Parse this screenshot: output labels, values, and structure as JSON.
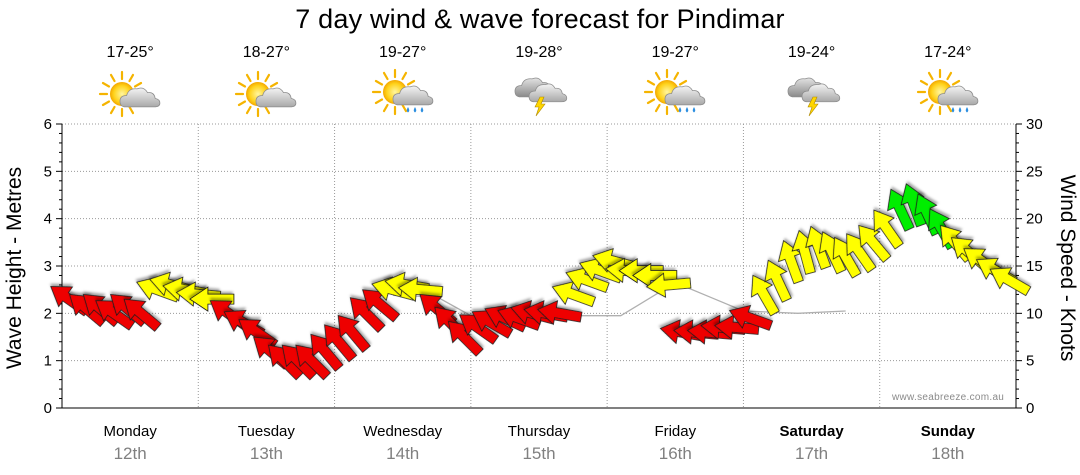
{
  "title": "7 day wind & wave forecast for Pindimar",
  "days": [
    {
      "name": "Monday",
      "date": "12th",
      "temp": "17-25°",
      "weather": "partly-cloudy-icon",
      "bold": false
    },
    {
      "name": "Tuesday",
      "date": "13th",
      "temp": "18-27°",
      "weather": "partly-cloudy-icon",
      "bold": false
    },
    {
      "name": "Wednesday",
      "date": "14th",
      "temp": "19-27°",
      "weather": "sun-shower-icon",
      "bold": false
    },
    {
      "name": "Thursday",
      "date": "15th",
      "temp": "19-28°",
      "weather": "storm-icon",
      "bold": false
    },
    {
      "name": "Friday",
      "date": "16th",
      "temp": "19-27°",
      "weather": "sun-shower-icon",
      "bold": false
    },
    {
      "name": "Saturday",
      "date": "17th",
      "temp": "19-24°",
      "weather": "storm-icon",
      "bold": true
    },
    {
      "name": "Sunday",
      "date": "18th",
      "temp": "17-24°",
      "weather": "sun-shower-icon",
      "bold": true
    }
  ],
  "credit": "www.seabreeze.com.au",
  "colors": {
    "calm": "#ffff00",
    "moderate": "#00ee00",
    "strong": "#ee0000",
    "wave_line": "#b0b0b0",
    "grid": "#9a9a9a"
  },
  "chart_data": {
    "type": "line",
    "title": "7 day wind & wave forecast for Pindimar",
    "y_left_label": "Wave Height - Metres",
    "y_left_range": [
      0,
      6
    ],
    "y_left_ticks": [
      "0",
      "1",
      "2",
      "3",
      "4",
      "5",
      "6"
    ],
    "y_right_label": "Wind Speed - Knots",
    "y_right_range": [
      0,
      30
    ],
    "y_right_ticks": [
      "0",
      "5",
      "10",
      "15",
      "20",
      "25",
      "30"
    ],
    "x_unit": "days from Monday 12th 00:00",
    "x_range": [
      0,
      7
    ],
    "grid": true,
    "wave_height_series": {
      "name": "Wave Height",
      "points": [
        [
          2.43,
          2.38
        ],
        [
          2.75,
          2.35
        ],
        [
          3.0,
          1.95
        ],
        [
          3.4,
          2.0
        ],
        [
          3.75,
          1.95
        ],
        [
          4.1,
          1.95
        ],
        [
          4.5,
          2.65
        ],
        [
          4.75,
          2.35
        ],
        [
          5.0,
          2.05
        ],
        [
          5.4,
          2.0
        ],
        [
          5.75,
          2.05
        ]
      ]
    },
    "wind_series": {
      "name": "Wind Speed",
      "unit": "knots",
      "direction": "arrow points toward wind heading (deg clockwise from east)",
      "points": [
        {
          "x": 0.05,
          "kts": 11.5,
          "dir": 215,
          "color": "strong"
        },
        {
          "x": 0.18,
          "kts": 10.5,
          "dir": 220,
          "color": "strong"
        },
        {
          "x": 0.28,
          "kts": 10.5,
          "dir": 220,
          "color": "strong"
        },
        {
          "x": 0.38,
          "kts": 10.0,
          "dir": 215,
          "color": "strong"
        },
        {
          "x": 0.48,
          "kts": 10.5,
          "dir": 220,
          "color": "strong"
        },
        {
          "x": 0.58,
          "kts": 10.0,
          "dir": 220,
          "color": "strong"
        },
        {
          "x": 0.7,
          "kts": 12.5,
          "dir": 200,
          "color": "calm"
        },
        {
          "x": 0.8,
          "kts": 13.0,
          "dir": 195,
          "color": "calm"
        },
        {
          "x": 0.9,
          "kts": 12.5,
          "dir": 190,
          "color": "calm"
        },
        {
          "x": 1.0,
          "kts": 12.0,
          "dir": 185,
          "color": "calm"
        },
        {
          "x": 1.1,
          "kts": 11.5,
          "dir": 180,
          "color": "calm"
        },
        {
          "x": 1.22,
          "kts": 10.0,
          "dir": 215,
          "color": "strong"
        },
        {
          "x": 1.33,
          "kts": 9.0,
          "dir": 210,
          "color": "strong"
        },
        {
          "x": 1.43,
          "kts": 8.0,
          "dir": 215,
          "color": "strong"
        },
        {
          "x": 1.53,
          "kts": 6.0,
          "dir": 220,
          "color": "strong"
        },
        {
          "x": 1.63,
          "kts": 5.0,
          "dir": 225,
          "color": "strong"
        },
        {
          "x": 1.73,
          "kts": 5.0,
          "dir": 225,
          "color": "strong"
        },
        {
          "x": 1.83,
          "kts": 5.0,
          "dir": 225,
          "color": "strong"
        },
        {
          "x": 1.93,
          "kts": 6.0,
          "dir": 230,
          "color": "strong"
        },
        {
          "x": 2.03,
          "kts": 7.0,
          "dir": 230,
          "color": "strong"
        },
        {
          "x": 2.13,
          "kts": 8.0,
          "dir": 230,
          "color": "strong"
        },
        {
          "x": 2.23,
          "kts": 10.0,
          "dir": 225,
          "color": "strong"
        },
        {
          "x": 2.33,
          "kts": 11.0,
          "dir": 220,
          "color": "strong"
        },
        {
          "x": 2.43,
          "kts": 12.5,
          "dir": 195,
          "color": "calm"
        },
        {
          "x": 2.53,
          "kts": 13.0,
          "dir": 190,
          "color": "calm"
        },
        {
          "x": 2.63,
          "kts": 12.5,
          "dir": 185,
          "color": "calm"
        },
        {
          "x": 2.75,
          "kts": 10.5,
          "dir": 220,
          "color": "strong"
        },
        {
          "x": 2.85,
          "kts": 9.0,
          "dir": 225,
          "color": "strong"
        },
        {
          "x": 2.95,
          "kts": 7.5,
          "dir": 225,
          "color": "strong"
        },
        {
          "x": 3.05,
          "kts": 8.5,
          "dir": 215,
          "color": "strong"
        },
        {
          "x": 3.15,
          "kts": 9.0,
          "dir": 210,
          "color": "strong"
        },
        {
          "x": 3.25,
          "kts": 9.5,
          "dir": 205,
          "color": "strong"
        },
        {
          "x": 3.35,
          "kts": 9.5,
          "dir": 200,
          "color": "strong"
        },
        {
          "x": 3.45,
          "kts": 10.0,
          "dir": 195,
          "color": "strong"
        },
        {
          "x": 3.55,
          "kts": 10.0,
          "dir": 190,
          "color": "strong"
        },
        {
          "x": 3.65,
          "kts": 10.0,
          "dir": 190,
          "color": "strong"
        },
        {
          "x": 3.75,
          "kts": 12.0,
          "dir": 200,
          "color": "calm"
        },
        {
          "x": 3.85,
          "kts": 13.5,
          "dir": 200,
          "color": "calm"
        },
        {
          "x": 3.95,
          "kts": 14.5,
          "dir": 200,
          "color": "calm"
        },
        {
          "x": 4.05,
          "kts": 15.5,
          "dir": 195,
          "color": "calm"
        },
        {
          "x": 4.15,
          "kts": 14.5,
          "dir": 185,
          "color": "calm"
        },
        {
          "x": 4.25,
          "kts": 14.5,
          "dir": 180,
          "color": "calm"
        },
        {
          "x": 4.35,
          "kts": 14.0,
          "dir": 180,
          "color": "calm"
        },
        {
          "x": 4.45,
          "kts": 13.0,
          "dir": 175,
          "color": "calm"
        },
        {
          "x": 4.55,
          "kts": 8.0,
          "dir": 190,
          "color": "strong"
        },
        {
          "x": 4.65,
          "kts": 8.0,
          "dir": 185,
          "color": "strong"
        },
        {
          "x": 4.75,
          "kts": 8.0,
          "dir": 185,
          "color": "strong"
        },
        {
          "x": 4.85,
          "kts": 8.5,
          "dir": 185,
          "color": "strong"
        },
        {
          "x": 4.95,
          "kts": 8.5,
          "dir": 185,
          "color": "strong"
        },
        {
          "x": 5.05,
          "kts": 9.5,
          "dir": 200,
          "color": "strong"
        },
        {
          "x": 5.15,
          "kts": 12.0,
          "dir": 240,
          "color": "calm"
        },
        {
          "x": 5.25,
          "kts": 13.5,
          "dir": 245,
          "color": "calm"
        },
        {
          "x": 5.35,
          "kts": 15.5,
          "dir": 250,
          "color": "calm"
        },
        {
          "x": 5.45,
          "kts": 16.5,
          "dir": 255,
          "color": "calm"
        },
        {
          "x": 5.55,
          "kts": 17.0,
          "dir": 250,
          "color": "calm"
        },
        {
          "x": 5.65,
          "kts": 16.5,
          "dir": 245,
          "color": "calm"
        },
        {
          "x": 5.75,
          "kts": 16.0,
          "dir": 240,
          "color": "calm"
        },
        {
          "x": 5.85,
          "kts": 16.5,
          "dir": 235,
          "color": "calm"
        },
        {
          "x": 5.95,
          "kts": 17.5,
          "dir": 230,
          "color": "calm"
        },
        {
          "x": 6.05,
          "kts": 19.0,
          "dir": 235,
          "color": "calm"
        },
        {
          "x": 6.15,
          "kts": 21.0,
          "dir": 245,
          "color": "moderate"
        },
        {
          "x": 6.25,
          "kts": 21.5,
          "dir": 250,
          "color": "moderate"
        },
        {
          "x": 6.35,
          "kts": 20.5,
          "dir": 245,
          "color": "moderate"
        },
        {
          "x": 6.45,
          "kts": 19.0,
          "dir": 240,
          "color": "moderate"
        },
        {
          "x": 6.55,
          "kts": 17.5,
          "dir": 230,
          "color": "calm"
        },
        {
          "x": 6.65,
          "kts": 16.5,
          "dir": 220,
          "color": "calm"
        },
        {
          "x": 6.75,
          "kts": 15.5,
          "dir": 215,
          "color": "calm"
        },
        {
          "x": 6.85,
          "kts": 14.5,
          "dir": 210,
          "color": "calm"
        },
        {
          "x": 6.95,
          "kts": 13.5,
          "dir": 210,
          "color": "calm"
        }
      ]
    }
  }
}
